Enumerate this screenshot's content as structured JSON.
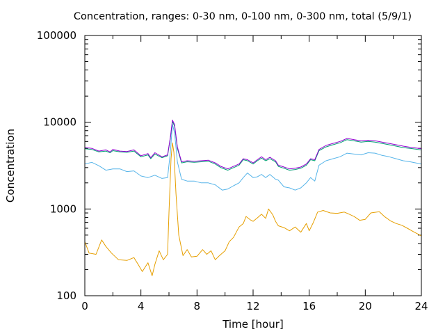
{
  "chart_data": {
    "type": "line",
    "title": "Concentration, ranges: 0-30 nm, 0-100 nm, 0-300 nm, total (5/9/1)",
    "xlabel": "Time [hour]",
    "ylabel": "Concentration",
    "xlim": [
      0,
      24
    ],
    "ylim": [
      100,
      100000
    ],
    "yscale": "log",
    "grid": false,
    "legend": "none",
    "x_ticks": [
      0,
      4,
      8,
      12,
      16,
      20,
      24
    ],
    "x_tick_labels": [
      "0",
      "4",
      "8",
      "12",
      "16",
      "20",
      "24"
    ],
    "y_ticks": [
      100,
      1000,
      10000,
      100000
    ],
    "y_tick_labels": [
      "100",
      "1000",
      "10000",
      "100000"
    ],
    "gap": [
      13.6,
      13.8
    ],
    "series": [
      {
        "color": "#e69f00",
        "points": [
          [
            0,
            420
          ],
          [
            0.3,
            310
          ],
          [
            0.8,
            300
          ],
          [
            1.2,
            440
          ],
          [
            1.5,
            370
          ],
          [
            1.9,
            310
          ],
          [
            2.4,
            260
          ],
          [
            3.0,
            255
          ],
          [
            3.5,
            275
          ],
          [
            3.8,
            230
          ],
          [
            4.1,
            190
          ],
          [
            4.5,
            240
          ],
          [
            4.8,
            170
          ],
          [
            5.0,
            230
          ],
          [
            5.3,
            330
          ],
          [
            5.6,
            260
          ],
          [
            5.9,
            300
          ],
          [
            6.0,
            900
          ],
          [
            6.15,
            3800
          ],
          [
            6.25,
            5800
          ],
          [
            6.35,
            4500
          ],
          [
            6.5,
            1500
          ],
          [
            6.7,
            500
          ],
          [
            7.0,
            290
          ],
          [
            7.3,
            340
          ],
          [
            7.6,
            280
          ],
          [
            8.0,
            285
          ],
          [
            8.4,
            340
          ],
          [
            8.7,
            300
          ],
          [
            9.0,
            330
          ],
          [
            9.3,
            260
          ],
          [
            9.6,
            290
          ],
          [
            10.0,
            330
          ],
          [
            10.3,
            420
          ],
          [
            10.6,
            470
          ],
          [
            11.0,
            620
          ],
          [
            11.3,
            680
          ],
          [
            11.5,
            820
          ],
          [
            11.8,
            750
          ],
          [
            12.0,
            720
          ],
          [
            12.3,
            790
          ],
          [
            12.6,
            870
          ],
          [
            12.9,
            780
          ],
          [
            13.1,
            1000
          ],
          [
            13.4,
            860
          ],
          [
            13.6,
            720
          ],
          [
            13.8,
            640
          ],
          [
            14.2,
            610
          ],
          [
            14.6,
            560
          ],
          [
            15.0,
            620
          ],
          [
            15.4,
            540
          ],
          [
            15.8,
            680
          ],
          [
            16.0,
            560
          ],
          [
            16.3,
            700
          ],
          [
            16.6,
            920
          ],
          [
            17.0,
            960
          ],
          [
            17.5,
            900
          ],
          [
            18.0,
            890
          ],
          [
            18.5,
            920
          ],
          [
            18.8,
            880
          ],
          [
            19.2,
            820
          ],
          [
            19.6,
            740
          ],
          [
            20.0,
            760
          ],
          [
            20.4,
            900
          ],
          [
            21.0,
            930
          ],
          [
            21.4,
            810
          ],
          [
            21.8,
            730
          ],
          [
            22.2,
            680
          ],
          [
            22.6,
            650
          ],
          [
            23.0,
            600
          ],
          [
            23.5,
            540
          ],
          [
            24,
            490
          ]
        ]
      },
      {
        "color": "#56b4e9",
        "points": [
          [
            0,
            3300
          ],
          [
            0.5,
            3450
          ],
          [
            1.0,
            3150
          ],
          [
            1.5,
            2800
          ],
          [
            2.0,
            2900
          ],
          [
            2.5,
            2900
          ],
          [
            3.0,
            2700
          ],
          [
            3.5,
            2750
          ],
          [
            4.0,
            2400
          ],
          [
            4.5,
            2300
          ],
          [
            5.0,
            2450
          ],
          [
            5.5,
            2250
          ],
          [
            5.9,
            2300
          ],
          [
            6.1,
            4500
          ],
          [
            6.25,
            9500
          ],
          [
            6.4,
            7500
          ],
          [
            6.6,
            3500
          ],
          [
            6.9,
            2200
          ],
          [
            7.3,
            2100
          ],
          [
            7.8,
            2100
          ],
          [
            8.3,
            2000
          ],
          [
            8.8,
            2000
          ],
          [
            9.3,
            1900
          ],
          [
            9.8,
            1650
          ],
          [
            10.2,
            1700
          ],
          [
            10.6,
            1850
          ],
          [
            11.0,
            2000
          ],
          [
            11.3,
            2300
          ],
          [
            11.6,
            2600
          ],
          [
            12.0,
            2300
          ],
          [
            12.3,
            2350
          ],
          [
            12.6,
            2500
          ],
          [
            12.9,
            2300
          ],
          [
            13.2,
            2500
          ],
          [
            13.6,
            2200
          ],
          [
            13.8,
            2150
          ],
          [
            14.2,
            1800
          ],
          [
            14.6,
            1750
          ],
          [
            15.0,
            1650
          ],
          [
            15.4,
            1750
          ],
          [
            15.8,
            2000
          ],
          [
            16.1,
            2300
          ],
          [
            16.4,
            2100
          ],
          [
            16.7,
            3200
          ],
          [
            17.2,
            3600
          ],
          [
            17.7,
            3800
          ],
          [
            18.2,
            4000
          ],
          [
            18.7,
            4400
          ],
          [
            19.2,
            4300
          ],
          [
            19.7,
            4200
          ],
          [
            20.2,
            4450
          ],
          [
            20.7,
            4400
          ],
          [
            21.2,
            4150
          ],
          [
            21.7,
            4000
          ],
          [
            22.2,
            3800
          ],
          [
            22.7,
            3600
          ],
          [
            23.2,
            3500
          ],
          [
            24,
            3300
          ]
        ]
      },
      {
        "color": "#009e73",
        "points": [
          [
            0,
            4950
          ],
          [
            0.5,
            4850
          ],
          [
            1.0,
            4550
          ],
          [
            1.5,
            4650
          ],
          [
            1.8,
            4450
          ],
          [
            2.0,
            4700
          ],
          [
            2.5,
            4550
          ],
          [
            3.0,
            4500
          ],
          [
            3.5,
            4650
          ],
          [
            4.0,
            4000
          ],
          [
            4.5,
            4200
          ],
          [
            4.7,
            3800
          ],
          [
            5.0,
            4300
          ],
          [
            5.5,
            3900
          ],
          [
            5.9,
            4100
          ],
          [
            6.1,
            6500
          ],
          [
            6.25,
            10200
          ],
          [
            6.4,
            9000
          ],
          [
            6.6,
            5000
          ],
          [
            6.9,
            3400
          ],
          [
            7.3,
            3500
          ],
          [
            7.8,
            3450
          ],
          [
            8.3,
            3500
          ],
          [
            8.8,
            3550
          ],
          [
            9.3,
            3300
          ],
          [
            9.7,
            3000
          ],
          [
            10.2,
            2800
          ],
          [
            10.6,
            3000
          ],
          [
            11.0,
            3200
          ],
          [
            11.3,
            3700
          ],
          [
            11.6,
            3600
          ],
          [
            12.0,
            3300
          ],
          [
            12.3,
            3600
          ],
          [
            12.6,
            3850
          ],
          [
            12.9,
            3600
          ],
          [
            13.2,
            3800
          ],
          [
            13.6,
            3500
          ],
          [
            13.8,
            3100
          ],
          [
            14.2,
            2950
          ],
          [
            14.6,
            2800
          ],
          [
            15.0,
            2850
          ],
          [
            15.4,
            2950
          ],
          [
            15.8,
            3200
          ],
          [
            16.1,
            3700
          ],
          [
            16.4,
            3600
          ],
          [
            16.7,
            4700
          ],
          [
            17.2,
            5200
          ],
          [
            17.7,
            5500
          ],
          [
            18.2,
            5800
          ],
          [
            18.7,
            6300
          ],
          [
            19.2,
            6100
          ],
          [
            19.7,
            5900
          ],
          [
            20.2,
            6000
          ],
          [
            20.7,
            5900
          ],
          [
            21.2,
            5700
          ],
          [
            21.7,
            5500
          ],
          [
            22.2,
            5300
          ],
          [
            22.7,
            5100
          ],
          [
            23.2,
            5000
          ],
          [
            24,
            4800
          ]
        ]
      },
      {
        "color": "#9400d3",
        "points": [
          [
            0,
            5100
          ],
          [
            0.5,
            5000
          ],
          [
            1.0,
            4650
          ],
          [
            1.5,
            4800
          ],
          [
            1.8,
            4550
          ],
          [
            2.0,
            4850
          ],
          [
            2.5,
            4650
          ],
          [
            3.0,
            4600
          ],
          [
            3.5,
            4800
          ],
          [
            4.0,
            4100
          ],
          [
            4.5,
            4350
          ],
          [
            4.7,
            3900
          ],
          [
            5.0,
            4450
          ],
          [
            5.5,
            4000
          ],
          [
            5.9,
            4200
          ],
          [
            6.1,
            6700
          ],
          [
            6.25,
            10600
          ],
          [
            6.4,
            9400
          ],
          [
            6.6,
            5200
          ],
          [
            6.9,
            3500
          ],
          [
            7.3,
            3600
          ],
          [
            7.8,
            3550
          ],
          [
            8.3,
            3600
          ],
          [
            8.8,
            3650
          ],
          [
            9.3,
            3400
          ],
          [
            9.7,
            3100
          ],
          [
            10.2,
            2900
          ],
          [
            10.6,
            3100
          ],
          [
            11.0,
            3300
          ],
          [
            11.3,
            3800
          ],
          [
            11.6,
            3700
          ],
          [
            12.0,
            3400
          ],
          [
            12.3,
            3700
          ],
          [
            12.6,
            4000
          ],
          [
            12.9,
            3700
          ],
          [
            13.2,
            3950
          ],
          [
            13.6,
            3600
          ],
          [
            13.8,
            3200
          ],
          [
            14.2,
            3050
          ],
          [
            14.6,
            2900
          ],
          [
            15.0,
            2950
          ],
          [
            15.4,
            3050
          ],
          [
            15.8,
            3300
          ],
          [
            16.1,
            3800
          ],
          [
            16.4,
            3700
          ],
          [
            16.7,
            4850
          ],
          [
            17.2,
            5400
          ],
          [
            17.7,
            5700
          ],
          [
            18.2,
            6000
          ],
          [
            18.7,
            6500
          ],
          [
            19.2,
            6300
          ],
          [
            19.7,
            6100
          ],
          [
            20.2,
            6200
          ],
          [
            20.7,
            6100
          ],
          [
            21.2,
            5900
          ],
          [
            21.7,
            5700
          ],
          [
            22.2,
            5500
          ],
          [
            22.7,
            5300
          ],
          [
            23.2,
            5150
          ],
          [
            24,
            4950
          ]
        ]
      }
    ]
  }
}
